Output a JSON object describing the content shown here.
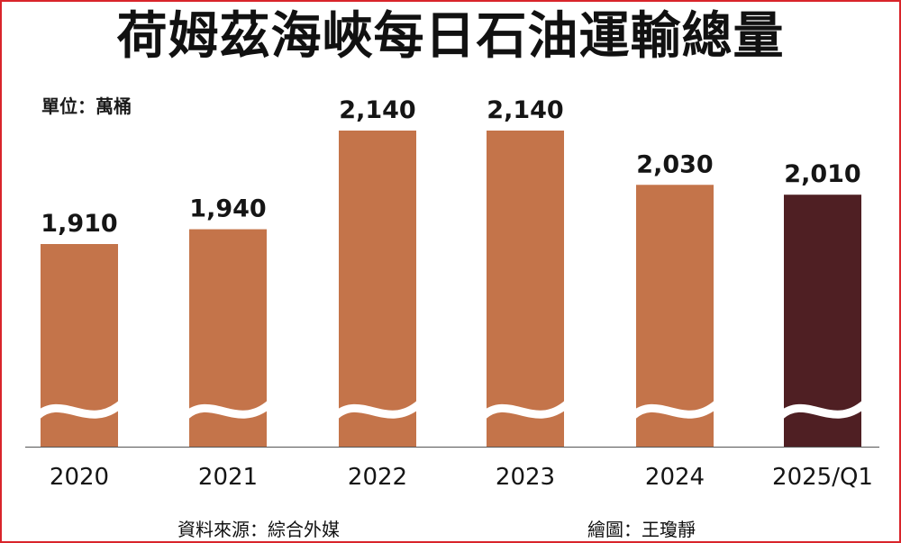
{
  "chart_data": {
    "type": "bar",
    "title": "荷姆茲海峽每日石油運輸總量",
    "unit_label": "單位：萬桶",
    "categories": [
      "2020",
      "2021",
      "2022",
      "2023",
      "2024",
      "2025/Q1"
    ],
    "values": [
      1910,
      1940,
      2140,
      2140,
      2030,
      2010
    ],
    "value_labels": [
      "1,910",
      "1,940",
      "2,140",
      "2,140",
      "2,030",
      "2,010"
    ],
    "axis_break": true,
    "bar_colors": [
      "#c4744a",
      "#c4744a",
      "#c4744a",
      "#c4744a",
      "#c4744a",
      "#4f1f23"
    ],
    "source": "資料來源：綜合外媒",
    "credit": "繪圖：王瓊靜"
  },
  "colors": {
    "border": "#d9252b",
    "bar": "#c4744a",
    "highlight_bar": "#4f1f23",
    "axis": "#555555"
  }
}
